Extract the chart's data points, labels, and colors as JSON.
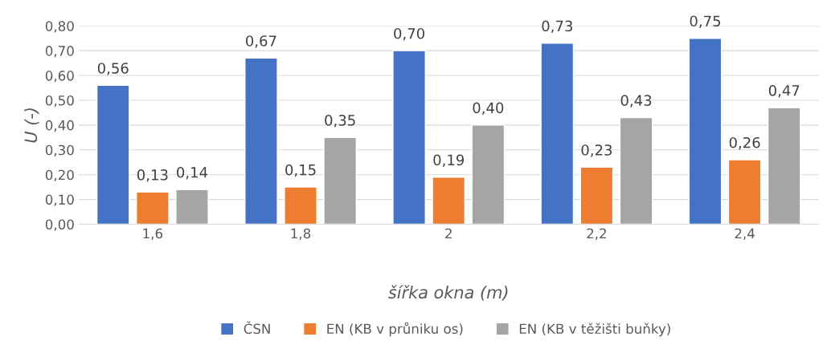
{
  "chart_data": {
    "type": "bar",
    "xlabel": "šířka okna (m)",
    "ylabel": "U (-)",
    "categories": [
      "1,6",
      "1,8",
      "2",
      "2,2",
      "2,4"
    ],
    "series": [
      {
        "name": "ČSN",
        "color": "#4472c4",
        "values": [
          0.56,
          0.67,
          0.7,
          0.73,
          0.75
        ],
        "value_labels": [
          "0,56",
          "0,67",
          "0,70",
          "0,73",
          "0,75"
        ]
      },
      {
        "name": "EN (KB v průniku os)",
        "color": "#ed7d31",
        "values": [
          0.13,
          0.15,
          0.19,
          0.23,
          0.26
        ],
        "value_labels": [
          "0,13",
          "0,15",
          "0,19",
          "0,23",
          "0,26"
        ]
      },
      {
        "name": "EN (KB v těžišti buňky)",
        "color": "#a5a5a5",
        "values": [
          0.14,
          0.35,
          0.4,
          0.43,
          0.47
        ],
        "value_labels": [
          "0,14",
          "0,35",
          "0,40",
          "0,43",
          "0,47"
        ]
      }
    ],
    "ylim": [
      0,
      0.8
    ],
    "yticks": [
      {
        "value": 0,
        "label": "0,00"
      },
      {
        "value": 0.1,
        "label": "0,10"
      },
      {
        "value": 0.2,
        "label": "0,20"
      },
      {
        "value": 0.3,
        "label": "0,30"
      },
      {
        "value": 0.4,
        "label": "0,40"
      },
      {
        "value": 0.5,
        "label": "0,50"
      },
      {
        "value": 0.6,
        "label": "0,60"
      },
      {
        "value": 0.7,
        "label": "0,70"
      },
      {
        "value": 0.8,
        "label": "0,80"
      }
    ],
    "grid": "y",
    "legend": "bottom"
  }
}
